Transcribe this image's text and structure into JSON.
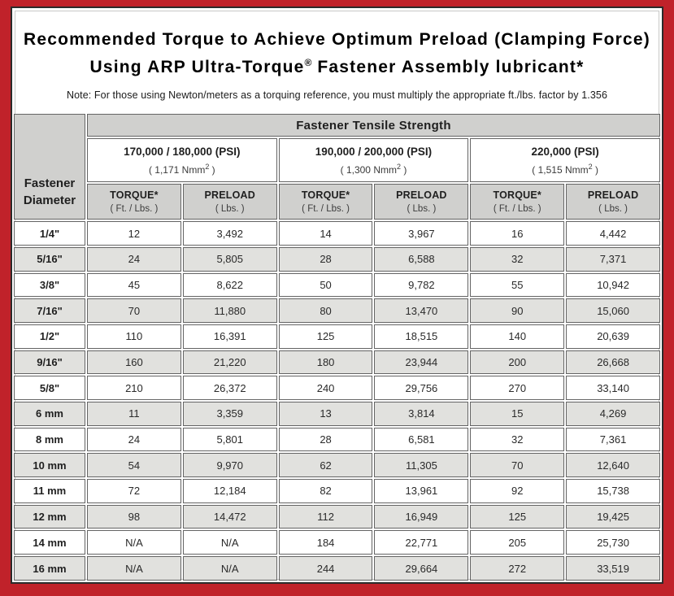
{
  "page": {
    "title_line1": "Recommended Torque to Achieve Optimum Preload (Clamping Force)",
    "title_line2_prefix": "Using ARP Ultra-Torque",
    "registered_mark": "®",
    "title_line2_suffix": " Fastener Assembly lubricant*",
    "note": "Note: For those using Newton/meters as a torquing reference, you must multiply the appropriate ft./lbs. factor by 1.356"
  },
  "colors": {
    "frame_red": "#c0222a",
    "header_gray": "#d0d0ce",
    "alt_row_gray": "#e1e1de",
    "panel_border": "#2b2b2b",
    "cell_border": "#646464"
  },
  "table": {
    "corner_header": "Fastener Diameter",
    "tensile_header": "Fastener Tensile Strength",
    "groups": [
      {
        "psi": "170,000 / 180,000 (PSI)",
        "nmm_prefix": "( 1,171 Nmm",
        "nmm_sup": "2",
        "nmm_suffix": " )"
      },
      {
        "psi": "190,000 / 200,000 (PSI)",
        "nmm_prefix": "( 1,300 Nmm",
        "nmm_sup": "2",
        "nmm_suffix": " )"
      },
      {
        "psi": "220,000 (PSI)",
        "nmm_prefix": "( 1,515 Nmm",
        "nmm_sup": "2",
        "nmm_suffix": " )"
      }
    ],
    "columns": {
      "torque_label": "TORQUE*",
      "torque_unit": "( Ft. / Lbs. )",
      "preload_label": "PRELOAD",
      "preload_unit": "( Lbs. )"
    },
    "rows": [
      {
        "diameter": "1/4\"",
        "values": [
          "12",
          "3,492",
          "14",
          "3,967",
          "16",
          "4,442"
        ]
      },
      {
        "diameter": "5/16\"",
        "values": [
          "24",
          "5,805",
          "28",
          "6,588",
          "32",
          "7,371"
        ]
      },
      {
        "diameter": "3/8\"",
        "values": [
          "45",
          "8,622",
          "50",
          "9,782",
          "55",
          "10,942"
        ]
      },
      {
        "diameter": "7/16\"",
        "values": [
          "70",
          "11,880",
          "80",
          "13,470",
          "90",
          "15,060"
        ]
      },
      {
        "diameter": "1/2\"",
        "values": [
          "110",
          "16,391",
          "125",
          "18,515",
          "140",
          "20,639"
        ]
      },
      {
        "diameter": "9/16\"",
        "values": [
          "160",
          "21,220",
          "180",
          "23,944",
          "200",
          "26,668"
        ]
      },
      {
        "diameter": "5/8\"",
        "values": [
          "210",
          "26,372",
          "240",
          "29,756",
          "270",
          "33,140"
        ]
      },
      {
        "diameter": "6 mm",
        "values": [
          "11",
          "3,359",
          "13",
          "3,814",
          "15",
          "4,269"
        ]
      },
      {
        "diameter": "8 mm",
        "values": [
          "24",
          "5,801",
          "28",
          "6,581",
          "32",
          "7,361"
        ]
      },
      {
        "diameter": "10 mm",
        "values": [
          "54",
          "9,970",
          "62",
          "11,305",
          "70",
          "12,640"
        ]
      },
      {
        "diameter": "11 mm",
        "values": [
          "72",
          "12,184",
          "82",
          "13,961",
          "92",
          "15,738"
        ]
      },
      {
        "diameter": "12 mm",
        "values": [
          "98",
          "14,472",
          "112",
          "16,949",
          "125",
          "19,425"
        ]
      },
      {
        "diameter": "14 mm",
        "values": [
          "N/A",
          "N/A",
          "184",
          "22,771",
          "205",
          "25,730"
        ]
      },
      {
        "diameter": "16 mm",
        "values": [
          "N/A",
          "N/A",
          "244",
          "29,664",
          "272",
          "33,519"
        ]
      }
    ]
  }
}
